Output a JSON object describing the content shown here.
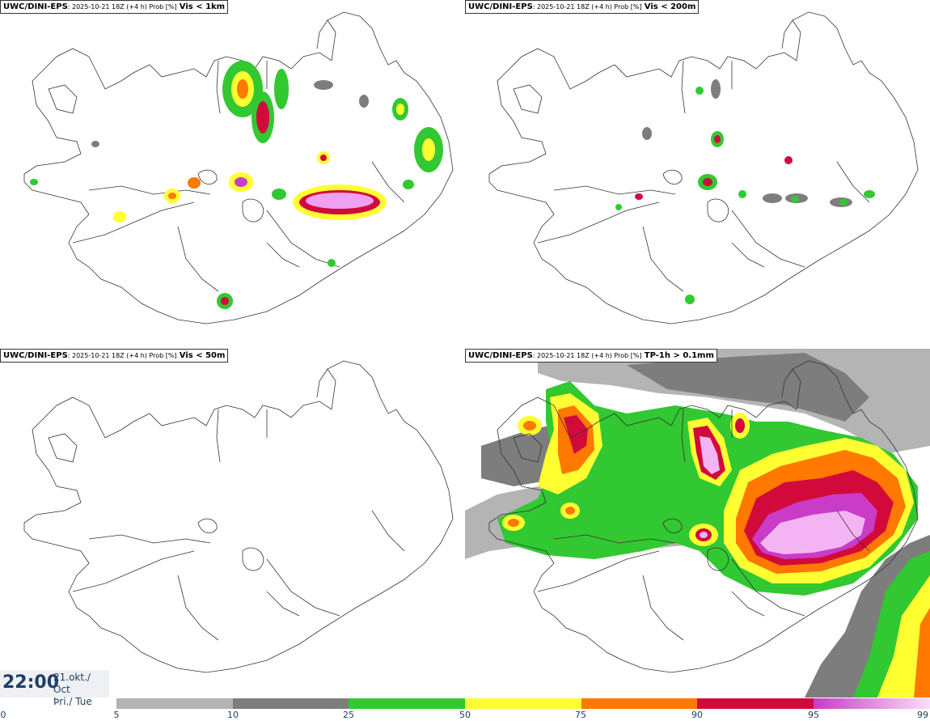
{
  "panels": [
    {
      "source": "UWC/DINI-EPS",
      "meta": ": 2025-10-21 18Z (+4 h) Prob [%]",
      "threshold": "Vis < 1km"
    },
    {
      "source": "UWC/DINI-EPS",
      "meta": ": 2025-10-21 18Z (+4 h) Prob [%]",
      "threshold": "Vis < 200m"
    },
    {
      "source": "UWC/DINI-EPS",
      "meta": ": 2025-10-21 18Z (+4 h) Prob [%]",
      "threshold": "Vis < 50m"
    },
    {
      "source": "UWC/DINI-EPS",
      "meta": ": 2025-10-21 18Z (+4 h) Prob [%]",
      "threshold": "TP-1h > 0.1mm"
    }
  ],
  "valid_time": {
    "time": "22:00",
    "date_line1": "21.okt./ Oct",
    "date_line2": "Þri./ Tue"
  },
  "legend": {
    "ticks": [
      "0",
      "5",
      "10",
      "25",
      "50",
      "75",
      "90",
      "95",
      "99"
    ],
    "colors": {
      "5-10": "#b4b4b4",
      "10-25": "#7d7d7d",
      "25-50": "#32c832",
      "50-75": "#ffff32",
      "75-90": "#ff7800",
      "90-95": "#d20a3c",
      "95-99-start": "#c83cc8",
      "95-99-end": "#fadcfa"
    }
  }
}
